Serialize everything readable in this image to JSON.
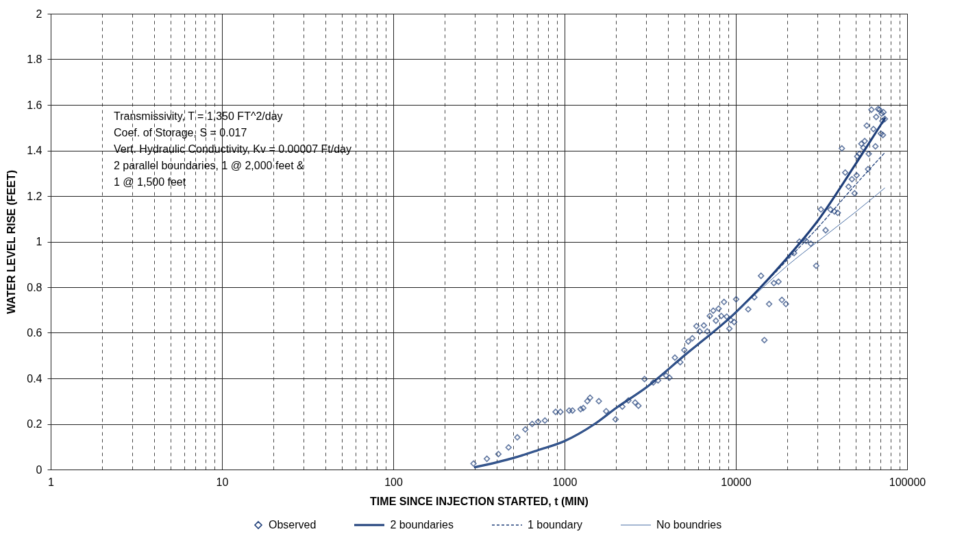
{
  "chart_data": {
    "type": "scatter",
    "xlabel": "TIME SINCE INJECTION STARTED, t (MIN)",
    "ylabel": "WATER LEVEL RISE (FEET)",
    "log": "x",
    "xlim": [
      1,
      100000
    ],
    "xticks": [
      1,
      10,
      100,
      1000,
      10000,
      100000
    ],
    "ylim": [
      0,
      2
    ],
    "yticks": [
      0,
      0.2,
      0.4,
      0.6,
      0.8,
      1,
      1.2,
      1.4,
      1.6,
      1.8,
      2
    ],
    "grid": true,
    "legend": "bottom",
    "annotations": [
      "Transmissivity, T = 1,350 FT^2/day",
      "Coef. of Storage, S = 0.017",
      "Vert. Hydraulic Conductivity, Kv = 0.00007 Ft/day",
      "2 parallel boundaries, 1 @ 2,000 feet  &",
      "      1 @ 1,500 feet"
    ],
    "series": [
      {
        "name": "Observed",
        "marker": "diamond",
        "color": "#1f3f7a",
        "x": [
          294,
          352,
          411,
          471,
          530,
          590,
          647,
          701,
          768,
          887,
          946,
          1064,
          1113,
          1241,
          1286,
          1358,
          1409,
          1585,
          1750,
          1985,
          2174,
          2358,
          2583,
          2700,
          2930,
          3296,
          3514,
          3918,
          4093,
          4406,
          4735,
          5000,
          5278,
          5570,
          5888,
          6155,
          6502,
          6808,
          7050,
          7380,
          7650,
          7930,
          8225,
          8530,
          8850,
          9165,
          9333,
          9770,
          10040,
          11810,
          12820,
          14030,
          14680,
          15640,
          16670,
          17740,
          18570,
          19600,
          21880,
          23500,
          25700,
          27400,
          29440,
          31400,
          33440,
          35650,
          37600,
          39360,
          41590,
          43500,
          45500,
          47630,
          49340,
          50720,
          51170,
          52600,
          54060,
          55510,
          56520,
          58100,
          59140,
          59700,
          61900,
          63550,
          65300,
          65950,
          67700,
          69000,
          70300,
          71000,
          71650,
          72240,
          72800,
          74130
        ],
        "values": [
          0.026,
          0.047,
          0.068,
          0.097,
          0.141,
          0.176,
          0.2,
          0.21,
          0.215,
          0.253,
          0.253,
          0.259,
          0.259,
          0.265,
          0.27,
          0.3,
          0.315,
          0.3,
          0.256,
          0.22,
          0.276,
          0.303,
          0.294,
          0.28,
          0.397,
          0.382,
          0.391,
          0.412,
          0.403,
          0.491,
          0.471,
          0.524,
          0.562,
          0.576,
          0.629,
          0.606,
          0.632,
          0.606,
          0.674,
          0.697,
          0.653,
          0.706,
          0.674,
          0.735,
          0.671,
          0.618,
          0.656,
          0.647,
          0.747,
          0.703,
          0.756,
          0.85,
          0.568,
          0.726,
          0.818,
          0.824,
          0.744,
          0.726,
          0.95,
          1.0,
          1.003,
          0.991,
          0.894,
          1.141,
          1.05,
          1.141,
          1.132,
          1.126,
          1.409,
          1.303,
          1.241,
          1.274,
          1.212,
          1.291,
          1.374,
          1.385,
          1.429,
          1.412,
          1.441,
          1.509,
          1.318,
          1.385,
          1.579,
          1.494,
          1.418,
          1.547,
          1.582,
          1.579,
          1.474,
          1.562,
          1.529,
          1.468,
          1.568,
          1.538
        ]
      },
      {
        "name": "2 boundaries",
        "type": "line",
        "line_style": "solid",
        "color": "#1f3f7a",
        "x": [
          300,
          500,
          700,
          1000,
          1500,
          2000,
          3000,
          5000,
          10000,
          20000,
          30000,
          50000,
          74000
        ],
        "values": [
          0.01,
          0.05,
          0.085,
          0.125,
          0.2,
          0.27,
          0.36,
          0.5,
          0.69,
          0.93,
          1.09,
          1.34,
          1.54
        ]
      },
      {
        "name": "1 boundary",
        "type": "line",
        "line_style": "dashed",
        "color": "#1f3f7a",
        "x": [
          300,
          500,
          700,
          1000,
          1500,
          2000,
          3000,
          5000,
          10000,
          20000,
          30000,
          50000,
          74000
        ],
        "values": [
          0.01,
          0.05,
          0.085,
          0.125,
          0.2,
          0.27,
          0.36,
          0.5,
          0.69,
          0.92,
          1.06,
          1.25,
          1.39
        ]
      },
      {
        "name": "No boundries",
        "type": "line",
        "line_style": "solid",
        "color": "#4a6fa5",
        "x": [
          300,
          500,
          700,
          1000,
          1500,
          2000,
          3000,
          5000,
          10000,
          20000,
          30000,
          50000,
          74000
        ],
        "values": [
          0.01,
          0.05,
          0.085,
          0.125,
          0.2,
          0.27,
          0.36,
          0.5,
          0.69,
          0.895,
          1.0,
          1.13,
          1.235
        ]
      }
    ]
  }
}
